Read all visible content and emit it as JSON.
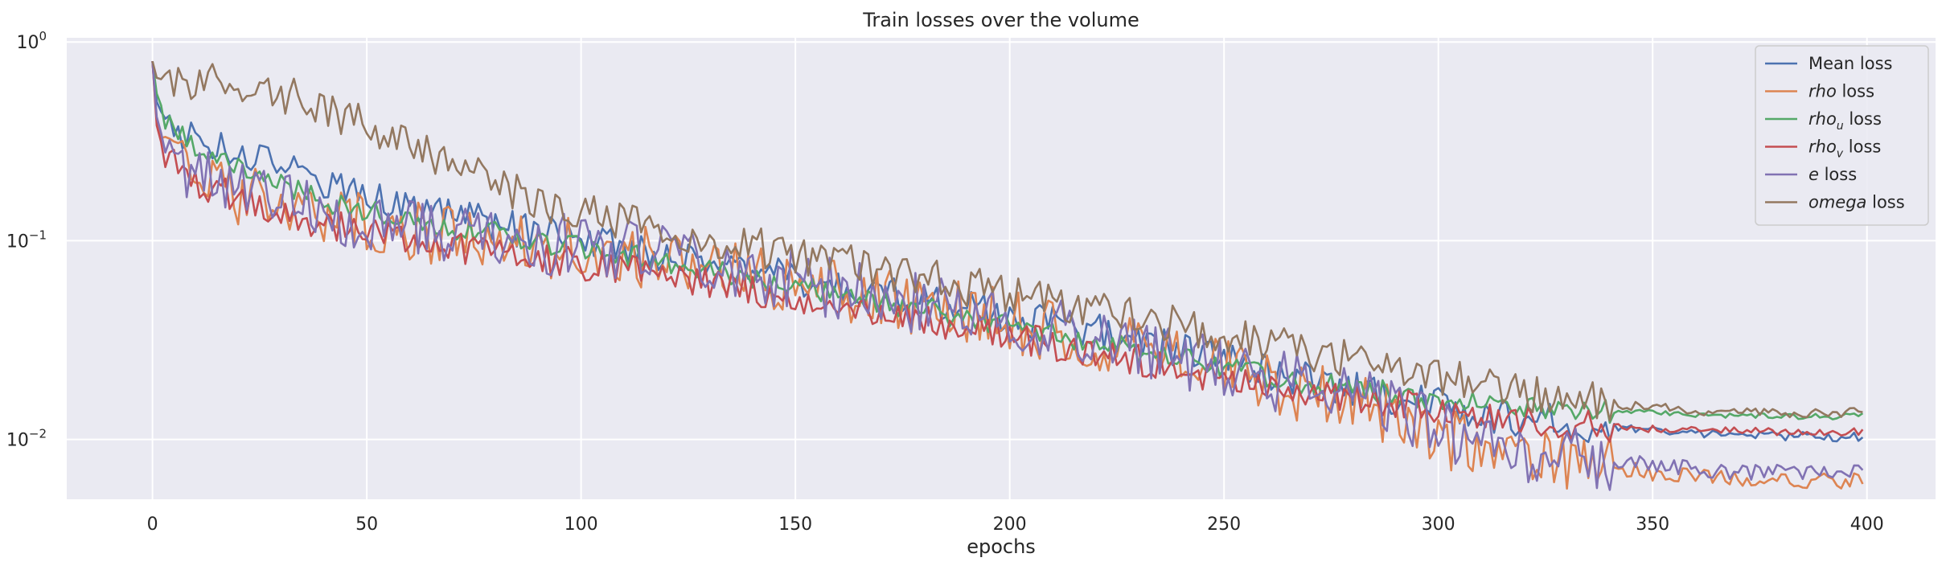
{
  "chart_data": {
    "type": "line",
    "title": "Train losses over the volume",
    "xlabel": "epochs",
    "ylabel": "",
    "xlim": [
      -20,
      416
    ],
    "ylim": [
      0.005,
      1.05
    ],
    "yscale": "log",
    "xticks": [
      0,
      50,
      100,
      150,
      200,
      250,
      300,
      350,
      400
    ],
    "yticks": [
      {
        "value": 0.01,
        "base": "10",
        "exp": "−2"
      },
      {
        "value": 0.1,
        "base": "10",
        "exp": "−1"
      },
      {
        "value": 1,
        "base": "10",
        "exp": "0"
      }
    ],
    "grid": true,
    "legend_position": "top-right",
    "background": "#eaeaf2",
    "series": [
      {
        "name": "Mean loss",
        "color": "#4c72b0",
        "name_math": "",
        "name_suffix": "",
        "anchors": [
          [
            0,
            0.8
          ],
          [
            1,
            0.5
          ],
          [
            3,
            0.4
          ],
          [
            10,
            0.32
          ],
          [
            20,
            0.28
          ],
          [
            30,
            0.24
          ],
          [
            40,
            0.2
          ],
          [
            50,
            0.175
          ],
          [
            60,
            0.15
          ],
          [
            70,
            0.132
          ],
          [
            80,
            0.12
          ],
          [
            90,
            0.11
          ],
          [
            100,
            0.1
          ],
          [
            110,
            0.092
          ],
          [
            120,
            0.085
          ],
          [
            130,
            0.079
          ],
          [
            140,
            0.072
          ],
          [
            150,
            0.065
          ],
          [
            160,
            0.059
          ],
          [
            170,
            0.054
          ],
          [
            180,
            0.05
          ],
          [
            190,
            0.046
          ],
          [
            200,
            0.042
          ],
          [
            210,
            0.038
          ],
          [
            220,
            0.035
          ],
          [
            230,
            0.031
          ],
          [
            240,
            0.028
          ],
          [
            250,
            0.025
          ],
          [
            260,
            0.022
          ],
          [
            270,
            0.02
          ],
          [
            280,
            0.018
          ],
          [
            290,
            0.016
          ],
          [
            300,
            0.015
          ],
          [
            310,
            0.0135
          ],
          [
            320,
            0.0127
          ],
          [
            330,
            0.012
          ],
          [
            340,
            0.0115
          ],
          [
            350,
            0.011
          ],
          [
            360,
            0.0107
          ],
          [
            370,
            0.0105
          ],
          [
            380,
            0.0104
          ],
          [
            390,
            0.0103
          ],
          [
            399,
            0.0103
          ]
        ],
        "noise": 0.09,
        "seed": 1
      },
      {
        "name": "rho loss",
        "color": "#dd8452",
        "name_math": "rho",
        "name_suffix": " loss",
        "anchors": [
          [
            0,
            0.8
          ],
          [
            1,
            0.4
          ],
          [
            3,
            0.27
          ],
          [
            10,
            0.21
          ],
          [
            20,
            0.17
          ],
          [
            30,
            0.148
          ],
          [
            40,
            0.132
          ],
          [
            50,
            0.122
          ],
          [
            60,
            0.112
          ],
          [
            70,
            0.105
          ],
          [
            80,
            0.1
          ],
          [
            90,
            0.095
          ],
          [
            100,
            0.09
          ],
          [
            110,
            0.085
          ],
          [
            120,
            0.08
          ],
          [
            130,
            0.074
          ],
          [
            140,
            0.068
          ],
          [
            150,
            0.062
          ],
          [
            160,
            0.056
          ],
          [
            170,
            0.051
          ],
          [
            180,
            0.047
          ],
          [
            190,
            0.043
          ],
          [
            200,
            0.039
          ],
          [
            210,
            0.035
          ],
          [
            220,
            0.032
          ],
          [
            230,
            0.028
          ],
          [
            240,
            0.025
          ],
          [
            250,
            0.022
          ],
          [
            260,
            0.019
          ],
          [
            270,
            0.017
          ],
          [
            280,
            0.015
          ],
          [
            290,
            0.013
          ],
          [
            300,
            0.011
          ],
          [
            305,
            0.0095
          ],
          [
            310,
            0.0088
          ],
          [
            320,
            0.0082
          ],
          [
            330,
            0.0077
          ],
          [
            340,
            0.0072
          ],
          [
            350,
            0.0068
          ],
          [
            360,
            0.0065
          ],
          [
            370,
            0.0063
          ],
          [
            380,
            0.0062
          ],
          [
            390,
            0.0062
          ],
          [
            399,
            0.0062
          ]
        ],
        "noise": 0.16,
        "seed": 2
      },
      {
        "name": "rho_u loss",
        "color": "#55a868",
        "name_math": "rho",
        "name_sub": "u",
        "name_suffix": " loss",
        "anchors": [
          [
            0,
            0.8
          ],
          [
            1,
            0.55
          ],
          [
            3,
            0.42
          ],
          [
            10,
            0.3
          ],
          [
            20,
            0.23
          ],
          [
            30,
            0.19
          ],
          [
            40,
            0.16
          ],
          [
            50,
            0.142
          ],
          [
            60,
            0.128
          ],
          [
            70,
            0.117
          ],
          [
            80,
            0.108
          ],
          [
            90,
            0.1
          ],
          [
            100,
            0.092
          ],
          [
            110,
            0.085
          ],
          [
            120,
            0.078
          ],
          [
            130,
            0.071
          ],
          [
            140,
            0.065
          ],
          [
            150,
            0.059
          ],
          [
            160,
            0.054
          ],
          [
            170,
            0.049
          ],
          [
            180,
            0.045
          ],
          [
            190,
            0.041
          ],
          [
            200,
            0.038
          ],
          [
            210,
            0.034
          ],
          [
            220,
            0.031
          ],
          [
            230,
            0.028
          ],
          [
            240,
            0.026
          ],
          [
            250,
            0.023
          ],
          [
            260,
            0.021
          ],
          [
            270,
            0.019
          ],
          [
            280,
            0.018
          ],
          [
            290,
            0.017
          ],
          [
            300,
            0.016
          ],
          [
            310,
            0.0152
          ],
          [
            320,
            0.0147
          ],
          [
            330,
            0.0142
          ],
          [
            340,
            0.0139
          ],
          [
            350,
            0.0136
          ],
          [
            360,
            0.0134
          ],
          [
            370,
            0.0132
          ],
          [
            380,
            0.0131
          ],
          [
            390,
            0.013
          ],
          [
            399,
            0.0131
          ]
        ],
        "noise": 0.06,
        "seed": 3
      },
      {
        "name": "rho_v loss",
        "color": "#c44e52",
        "name_math": "rho",
        "name_sub": "v",
        "name_suffix": " loss",
        "anchors": [
          [
            0,
            0.8
          ],
          [
            1,
            0.38
          ],
          [
            3,
            0.26
          ],
          [
            10,
            0.2
          ],
          [
            20,
            0.16
          ],
          [
            30,
            0.138
          ],
          [
            40,
            0.122
          ],
          [
            50,
            0.11
          ],
          [
            60,
            0.1
          ],
          [
            70,
            0.093
          ],
          [
            80,
            0.087
          ],
          [
            90,
            0.081
          ],
          [
            100,
            0.076
          ],
          [
            110,
            0.071
          ],
          [
            120,
            0.066
          ],
          [
            130,
            0.061
          ],
          [
            140,
            0.056
          ],
          [
            150,
            0.051
          ],
          [
            160,
            0.047
          ],
          [
            170,
            0.043
          ],
          [
            180,
            0.039
          ],
          [
            190,
            0.036
          ],
          [
            200,
            0.033
          ],
          [
            210,
            0.03
          ],
          [
            220,
            0.027
          ],
          [
            230,
            0.025
          ],
          [
            240,
            0.022
          ],
          [
            250,
            0.02
          ],
          [
            260,
            0.019
          ],
          [
            270,
            0.017
          ],
          [
            280,
            0.016
          ],
          [
            290,
            0.015
          ],
          [
            300,
            0.0142
          ],
          [
            310,
            0.0133
          ],
          [
            320,
            0.0126
          ],
          [
            330,
            0.012
          ],
          [
            340,
            0.0116
          ],
          [
            350,
            0.0113
          ],
          [
            360,
            0.0111
          ],
          [
            370,
            0.011
          ],
          [
            380,
            0.0109
          ],
          [
            390,
            0.0109
          ],
          [
            399,
            0.0109
          ]
        ],
        "noise": 0.08,
        "seed": 4
      },
      {
        "name": "e loss",
        "color": "#8172b3",
        "name_math": "e",
        "name_suffix": " loss",
        "anchors": [
          [
            0,
            0.8
          ],
          [
            1,
            0.42
          ],
          [
            3,
            0.29
          ],
          [
            10,
            0.22
          ],
          [
            20,
            0.18
          ],
          [
            30,
            0.155
          ],
          [
            40,
            0.138
          ],
          [
            50,
            0.128
          ],
          [
            60,
            0.118
          ],
          [
            70,
            0.11
          ],
          [
            80,
            0.104
          ],
          [
            90,
            0.098
          ],
          [
            100,
            0.093
          ],
          [
            110,
            0.088
          ],
          [
            120,
            0.082
          ],
          [
            130,
            0.076
          ],
          [
            140,
            0.07
          ],
          [
            150,
            0.064
          ],
          [
            160,
            0.058
          ],
          [
            170,
            0.053
          ],
          [
            180,
            0.048
          ],
          [
            190,
            0.044
          ],
          [
            200,
            0.04
          ],
          [
            210,
            0.036
          ],
          [
            220,
            0.033
          ],
          [
            230,
            0.029
          ],
          [
            240,
            0.026
          ],
          [
            250,
            0.023
          ],
          [
            260,
            0.02
          ],
          [
            270,
            0.018
          ],
          [
            280,
            0.016
          ],
          [
            290,
            0.014
          ],
          [
            300,
            0.012
          ],
          [
            305,
            0.0102
          ],
          [
            310,
            0.0095
          ],
          [
            320,
            0.0088
          ],
          [
            330,
            0.0083
          ],
          [
            340,
            0.0078
          ],
          [
            350,
            0.0074
          ],
          [
            360,
            0.0071
          ],
          [
            370,
            0.0069
          ],
          [
            380,
            0.0068
          ],
          [
            390,
            0.0068
          ],
          [
            399,
            0.0068
          ]
        ],
        "noise": 0.16,
        "seed": 5
      },
      {
        "name": "omega loss",
        "color": "#937860",
        "name_math": "omega",
        "name_suffix": " loss",
        "anchors": [
          [
            0,
            0.8
          ],
          [
            1,
            0.66
          ],
          [
            3,
            0.64
          ],
          [
            10,
            0.63
          ],
          [
            20,
            0.6
          ],
          [
            30,
            0.55
          ],
          [
            40,
            0.47
          ],
          [
            50,
            0.38
          ],
          [
            60,
            0.3
          ],
          [
            70,
            0.24
          ],
          [
            80,
            0.19
          ],
          [
            90,
            0.16
          ],
          [
            100,
            0.14
          ],
          [
            110,
            0.125
          ],
          [
            120,
            0.113
          ],
          [
            130,
            0.103
          ],
          [
            140,
            0.094
          ],
          [
            150,
            0.085
          ],
          [
            160,
            0.078
          ],
          [
            170,
            0.071
          ],
          [
            180,
            0.065
          ],
          [
            190,
            0.059
          ],
          [
            200,
            0.054
          ],
          [
            210,
            0.049
          ],
          [
            220,
            0.045
          ],
          [
            230,
            0.041
          ],
          [
            240,
            0.038
          ],
          [
            250,
            0.034
          ],
          [
            260,
            0.031
          ],
          [
            270,
            0.028
          ],
          [
            280,
            0.025
          ],
          [
            290,
            0.023
          ],
          [
            300,
            0.021
          ],
          [
            310,
            0.019
          ],
          [
            320,
            0.0175
          ],
          [
            330,
            0.0162
          ],
          [
            340,
            0.0152
          ],
          [
            350,
            0.0145
          ],
          [
            360,
            0.014
          ],
          [
            370,
            0.0137
          ],
          [
            380,
            0.0135
          ],
          [
            390,
            0.0135
          ],
          [
            399,
            0.0137
          ]
        ],
        "noise": 0.1,
        "seed": 6
      }
    ]
  }
}
